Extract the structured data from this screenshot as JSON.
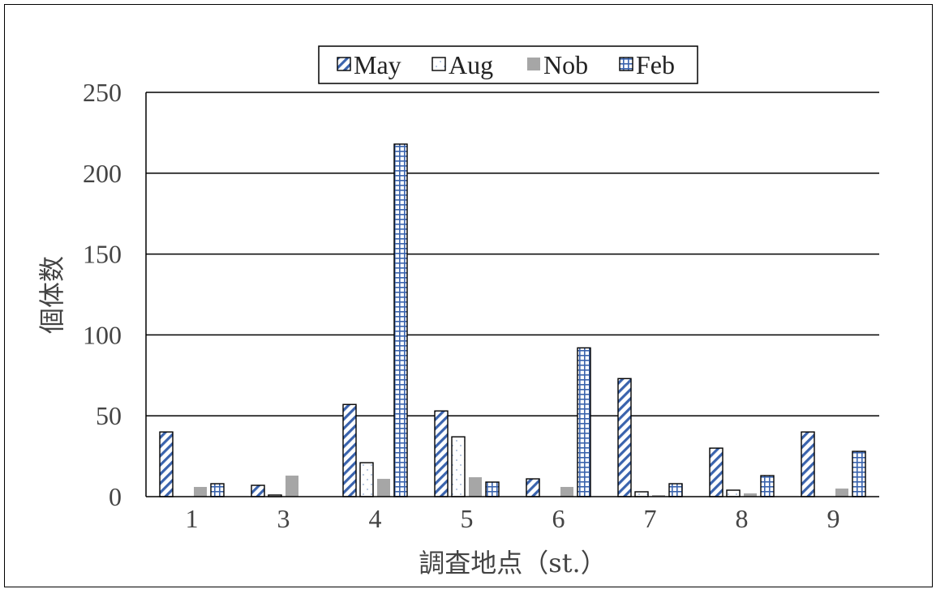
{
  "chart_data": {
    "type": "bar",
    "categories": [
      "1",
      "3",
      "4",
      "5",
      "6",
      "7",
      "8",
      "9"
    ],
    "series": [
      {
        "name": "May",
        "values": [
          40,
          7,
          57,
          53,
          11,
          73,
          30,
          40
        ]
      },
      {
        "name": "Aug",
        "values": [
          0,
          1,
          21,
          37,
          0,
          3,
          4,
          0
        ]
      },
      {
        "name": "Nob",
        "values": [
          6,
          13,
          11,
          12,
          6,
          1,
          2,
          5
        ]
      },
      {
        "name": "Feb",
        "values": [
          8,
          0,
          218,
          9,
          92,
          8,
          13,
          28
        ]
      }
    ],
    "series_3_override_note": "",
    "title": "",
    "xlabel": "調査地点（st.）",
    "ylabel": "個体数",
    "ylim": [
      0,
      250
    ],
    "yticks": [
      "0",
      "50",
      "100",
      "150",
      "200",
      "250"
    ],
    "grid": true,
    "legend_position": "top"
  }
}
